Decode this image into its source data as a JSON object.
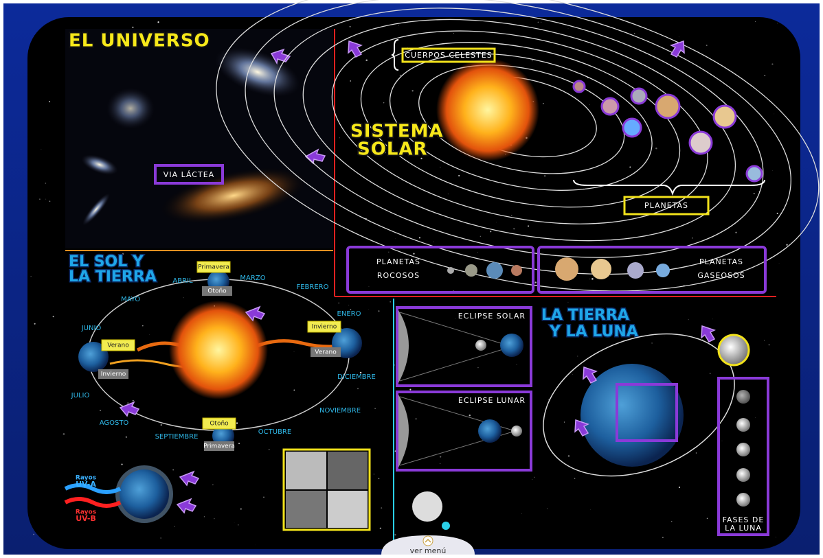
{
  "universe": {
    "title": "EL UNIVERSO",
    "milky_way": "VIA LÁCTEA"
  },
  "solar_system": {
    "title_lines": [
      "SISTEMA",
      "SOLAR"
    ],
    "celestial_bodies": "CUERPOS CELESTES",
    "planets": "PLANETAS",
    "rocky": [
      "PLANETAS",
      "ROCOSOS"
    ],
    "gaseous": [
      "PLANETAS",
      "GASEOSOS"
    ]
  },
  "sun_earth": {
    "title_lines": [
      "EL SOL Y",
      "LA TIERRA"
    ],
    "months": [
      "ENERO",
      "FEBRERO",
      "MARZO",
      "ABRIL",
      "MAYO",
      "JUNIO",
      "JULIO",
      "AGOSTO",
      "SEPTIEMBRE",
      "OCTUBRE",
      "NOVIEMBRE",
      "DICIEMBRE"
    ],
    "seasons": {
      "top": [
        "Primavera",
        "Otoño"
      ],
      "right": [
        "Invierno",
        "Verano"
      ],
      "left": [
        "Verano",
        "Invierno"
      ],
      "bottom": [
        "Otoño",
        "Primavera"
      ]
    }
  },
  "eclipses": [
    "ECLIPSE SOLAR",
    "ECLIPSE LUNAR"
  ],
  "earth_moon": {
    "title_lines": [
      "LA TIERRA",
      "Y LA LUNA"
    ],
    "moon_phases": [
      "FASES DE",
      "LA LUNA"
    ]
  },
  "uv": {
    "uva": [
      "Rayos",
      "UV-A"
    ],
    "uvb": [
      "Rayos",
      "UV-B"
    ]
  },
  "menu": "ver menú"
}
